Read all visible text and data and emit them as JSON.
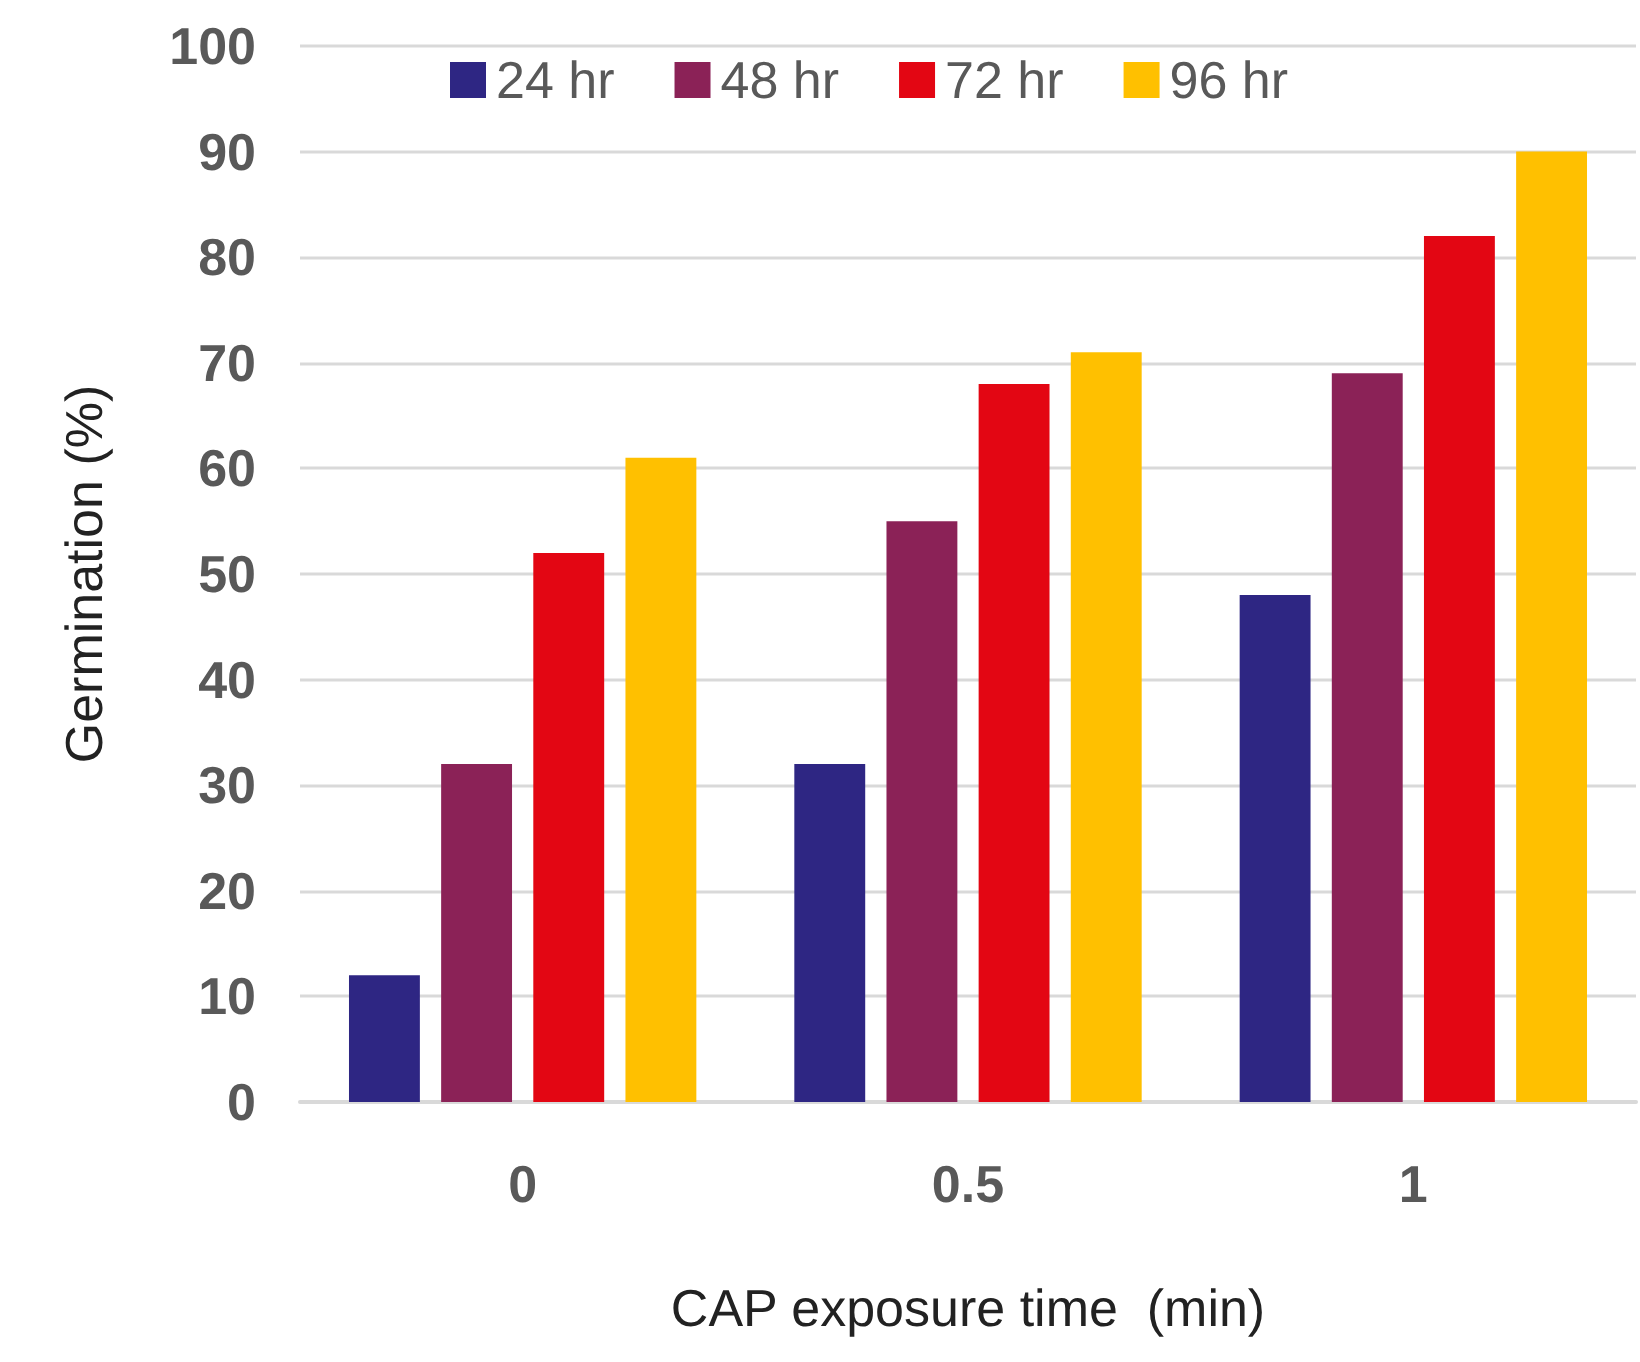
{
  "chart_data": {
    "type": "bar",
    "xlabel": "CAP exposure time  (min)",
    "ylabel": "Germination (%)",
    "categories": [
      "0",
      "0.5",
      "1"
    ],
    "series": [
      {
        "name": "24 hr",
        "color": "#2e2683",
        "values": [
          12,
          32,
          48
        ]
      },
      {
        "name": "48 hr",
        "color": "#8b2257",
        "values": [
          32,
          55,
          69
        ]
      },
      {
        "name": "72 hr",
        "color": "#e30613",
        "values": [
          52,
          68,
          82
        ]
      },
      {
        "name": "96 hr",
        "color": "#ffc000",
        "values": [
          61,
          71,
          90
        ]
      }
    ],
    "ylim": [
      0,
      100
    ],
    "yticks": [
      0,
      10,
      20,
      30,
      40,
      50,
      60,
      70,
      80,
      90,
      100
    ],
    "grid": "y",
    "legend": "top"
  }
}
